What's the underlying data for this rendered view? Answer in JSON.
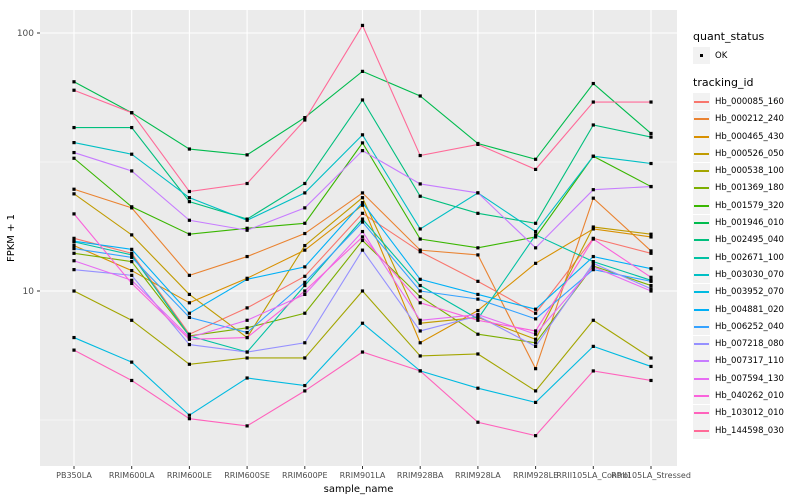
{
  "figure": {
    "background": "#FFFFFF",
    "panel_background": "#EBEBEB",
    "grid_color": "#FFFFFF",
    "axis_text_color": "#4D4D4D",
    "axis_title_color": "#000000",
    "tick_color": "#333333",
    "point_color": "#000000",
    "legend_key_background": "#F2F2F2"
  },
  "chart_data": {
    "type": "line",
    "title": "",
    "xlabel": "sample_name",
    "ylabel": "FPKM + 1",
    "y_scale": "log10",
    "ylim": [
      2.1,
      123
    ],
    "y_major_ticks": [
      10,
      100
    ],
    "y_tick_labels": [
      "10",
      "100"
    ],
    "y_minor_gridlines": [
      3.1623,
      31.6228
    ],
    "grid": "on",
    "legend_position": "right",
    "point_shape": "filled-square",
    "categories": [
      "PB350LA",
      "RRIM600LA",
      "RRIM600LE",
      "RRIM600SE",
      "RRIM600PE",
      "RRIM901LA",
      "RRIM928BA",
      "RRIM928LA",
      "RRIM928LE",
      "RRII105LA_Control",
      "RRII105LA_Stressed"
    ],
    "legend": {
      "quant_title": "quant_status",
      "quant_ok_label": "OK",
      "series_title": "tracking_id"
    },
    "series": [
      {
        "tracking_id": "Hb_000085_160",
        "color": "#F8766D",
        "values": [
          16.0,
          14.0,
          6.8,
          8.6,
          11.4,
          20.0,
          14.2,
          10.9,
          8.2,
          16.0,
          14.0
        ]
      },
      {
        "tracking_id": "Hb_000212_240",
        "color": "#EA8331",
        "values": [
          24.8,
          21.0,
          11.5,
          13.6,
          16.7,
          24.0,
          14.4,
          13.8,
          5.0,
          22.9,
          14.3
        ]
      },
      {
        "tracking_id": "Hb_000465_430",
        "color": "#D89000",
        "values": [
          15.0,
          12.0,
          9.0,
          11.2,
          14.4,
          21.5,
          6.3,
          8.4,
          12.8,
          17.4,
          16.2
        ]
      },
      {
        "tracking_id": "Hb_000526_050",
        "color": "#C09B00",
        "values": [
          23.8,
          16.5,
          9.7,
          6.6,
          15.0,
          23.0,
          7.5,
          7.9,
          6.5,
          17.7,
          16.6
        ]
      },
      {
        "tracking_id": "Hb_000538_100",
        "color": "#A3A500",
        "values": [
          10.0,
          7.7,
          5.2,
          5.5,
          5.5,
          10.0,
          5.6,
          5.7,
          4.1,
          7.7,
          5.5
        ]
      },
      {
        "tracking_id": "Hb_001369_180",
        "color": "#7CAE00",
        "values": [
          14.0,
          13.0,
          6.7,
          7.2,
          8.2,
          15.7,
          9.5,
          6.8,
          6.3,
          12.5,
          10.5
        ]
      },
      {
        "tracking_id": "Hb_001579_320",
        "color": "#39B600",
        "values": [
          32.7,
          21.2,
          16.6,
          17.5,
          18.3,
          37.5,
          15.9,
          14.7,
          16.2,
          33.3,
          25.4
        ]
      },
      {
        "tracking_id": "Hb_001946_010",
        "color": "#00BB4E",
        "values": [
          64.7,
          49.1,
          35.5,
          33.7,
          47.0,
          71.0,
          57.0,
          37.3,
          32.4,
          63.7,
          40.8
        ]
      },
      {
        "tracking_id": "Hb_002495_040",
        "color": "#00BF7D",
        "values": [
          43.0,
          43.0,
          22.2,
          19.0,
          26.1,
          55.0,
          23.3,
          20.0,
          18.3,
          44.0,
          39.5
        ]
      },
      {
        "tracking_id": "Hb_002671_100",
        "color": "#00C1A3",
        "values": [
          15.5,
          13.8,
          6.7,
          5.8,
          10.5,
          19.0,
          10.5,
          7.8,
          16.5,
          13.0,
          11.0
        ]
      },
      {
        "tracking_id": "Hb_003030_070",
        "color": "#00BFC4",
        "values": [
          37.6,
          33.9,
          23.0,
          18.8,
          24.0,
          40.3,
          17.4,
          24.0,
          17.0,
          33.3,
          31.2
        ]
      },
      {
        "tracking_id": "Hb_003952_070",
        "color": "#00BAE0",
        "values": [
          6.6,
          5.3,
          3.3,
          4.6,
          4.3,
          7.5,
          4.9,
          4.2,
          3.7,
          6.1,
          5.1
        ]
      },
      {
        "tracking_id": "Hb_004881_020",
        "color": "#00B0F6",
        "values": [
          15.6,
          14.5,
          8.2,
          11.1,
          12.4,
          22.0,
          11.1,
          9.7,
          8.5,
          13.6,
          12.2
        ]
      },
      {
        "tracking_id": "Hb_006252_040",
        "color": "#35A2FF",
        "values": [
          14.6,
          13.5,
          7.9,
          6.9,
          10.8,
          18.5,
          10.0,
          9.3,
          7.8,
          12.1,
          10.9
        ]
      },
      {
        "tracking_id": "Hb_007218_080",
        "color": "#9590FF",
        "values": [
          12.1,
          11.5,
          6.2,
          5.8,
          6.3,
          14.4,
          7.0,
          8.0,
          6.1,
          12.8,
          10.2
        ]
      },
      {
        "tracking_id": "Hb_007317_110",
        "color": "#C77CFF",
        "values": [
          34.4,
          29.2,
          18.8,
          17.2,
          21.0,
          35.0,
          26.0,
          24.0,
          14.7,
          24.7,
          25.4
        ]
      },
      {
        "tracking_id": "Hb_007594_130",
        "color": "#E76BF3",
        "values": [
          13.1,
          11.0,
          6.6,
          7.7,
          9.7,
          17.0,
          7.7,
          8.1,
          6.8,
          12.4,
          10.0
        ]
      },
      {
        "tracking_id": "Hb_040262_010",
        "color": "#FA62DB",
        "values": [
          19.9,
          10.7,
          6.5,
          6.6,
          10.0,
          16.2,
          9.0,
          7.7,
          7.0,
          15.9,
          11.3
        ]
      },
      {
        "tracking_id": "Hb_103012_010",
        "color": "#FF62BC",
        "values": [
          5.9,
          4.5,
          3.2,
          3.0,
          4.1,
          5.8,
          4.9,
          3.1,
          2.75,
          4.9,
          4.5
        ]
      },
      {
        "tracking_id": "Hb_144598_030",
        "color": "#FF6A98",
        "values": [
          60.0,
          49.1,
          24.3,
          26.1,
          46.0,
          107.0,
          33.5,
          37.0,
          29.6,
          54.0,
          54.0
        ]
      }
    ]
  }
}
